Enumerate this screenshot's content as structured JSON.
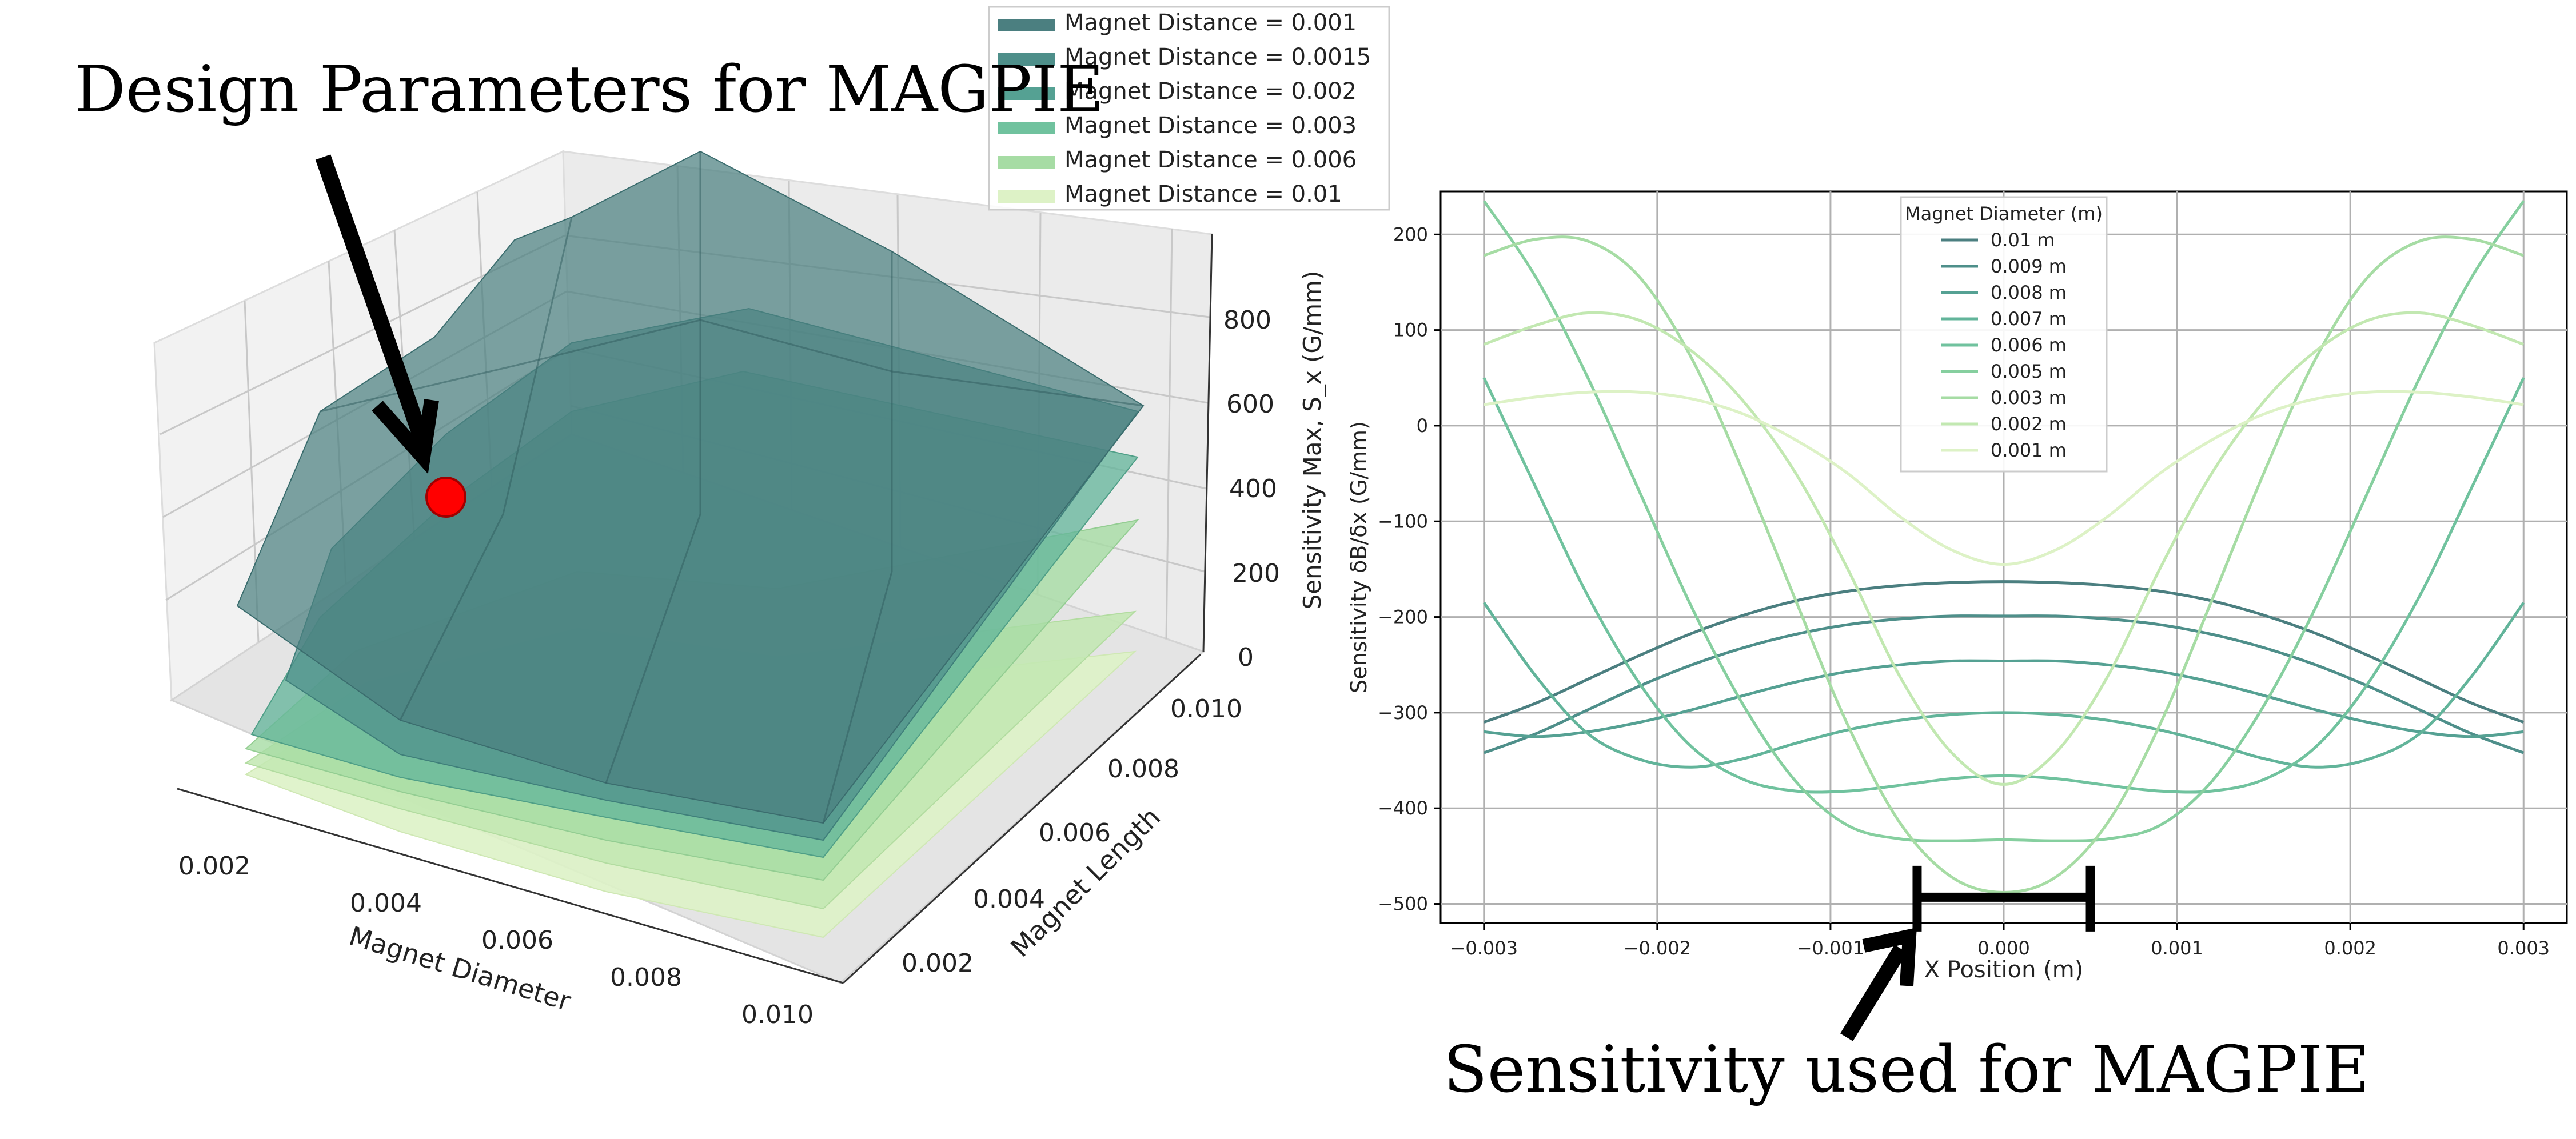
{
  "annotations": {
    "left_title": "Design Parameters for MAGPIE",
    "right_title": "Sensitivity used for MAGPIE"
  },
  "colors": {
    "d0010": "#4b7f80",
    "d0009": "#4e8f8a",
    "d0008": "#55a193",
    "d0007": "#62b49a",
    "d0006": "#70c29e",
    "d0005": "#86cf9f",
    "d0003": "#a6dca4",
    "d0002": "#c2e8b1",
    "d0001": "#ddf2c6",
    "marker": "#ff0000"
  },
  "chart_data": [
    {
      "type": "surface",
      "xlabel": "Magnet Diameter",
      "ylabel": "Magnet Length",
      "zlabel": "Sensitivity Max, S_x (G/mm)",
      "x_ticks": [
        "0.002",
        "0.004",
        "0.006",
        "0.008",
        "0.010"
      ],
      "y_ticks": [
        "0.002",
        "0.004",
        "0.006",
        "0.008",
        "0.010"
      ],
      "z_ticks": [
        "0",
        "200",
        "400",
        "600",
        "800"
      ],
      "xlim": [
        0.001,
        0.01
      ],
      "ylim": [
        0.001,
        0.01
      ],
      "zlim": [
        0,
        900
      ],
      "legend_position": "top-right",
      "series": [
        {
          "name": "Magnet Distance = 0.001",
          "approx_peak": 900,
          "color_key": "d0010"
        },
        {
          "name": "Magnet Distance = 0.0015",
          "approx_peak": 560,
          "color_key": "d0009"
        },
        {
          "name": "Magnet Distance = 0.002",
          "approx_peak": 380,
          "color_key": "d0008"
        },
        {
          "name": "Magnet Distance = 0.003",
          "approx_peak": 180,
          "color_key": "d0006"
        },
        {
          "name": "Magnet Distance = 0.006",
          "approx_peak": 60,
          "color_key": "d0003"
        },
        {
          "name": "Magnet Distance = 0.01",
          "approx_peak": 20,
          "color_key": "d0001"
        }
      ],
      "marker": {
        "diameter": 0.002,
        "length": 0.008,
        "value": 460
      }
    },
    {
      "type": "line",
      "xlabel": "X Position (m)",
      "ylabel": "Sensitivity δB/δx (G/mm)",
      "xlim": [
        -0.00325,
        0.00325
      ],
      "ylim": [
        -520,
        245
      ],
      "x_ticks": [
        -0.003,
        -0.002,
        -0.001,
        0.0,
        0.001,
        0.002,
        0.003
      ],
      "x_tick_labels": [
        "−0.003",
        "−0.002",
        "−0.001",
        "0.000",
        "0.001",
        "0.002",
        "0.003"
      ],
      "y_ticks": [
        -500,
        -400,
        -300,
        -200,
        -100,
        0,
        100,
        200
      ],
      "y_tick_labels": [
        "−500",
        "−400",
        "−300",
        "−200",
        "−100",
        "0",
        "100",
        "200"
      ],
      "grid": true,
      "legend_title": "Magnet Diameter (m)",
      "legend_position": "upper-center",
      "x": [
        -0.003,
        -0.0027,
        -0.0024,
        -0.0021,
        -0.0018,
        -0.0015,
        -0.0012,
        -0.0009,
        -0.0006,
        -0.0003,
        0.0,
        0.0003,
        0.0006,
        0.0009,
        0.0012,
        0.0015,
        0.0018,
        0.0021,
        0.0024,
        0.0027,
        0.003
      ],
      "series": [
        {
          "name": "0.01 m",
          "color_key": "d0010",
          "values": [
            -310,
            -290,
            -265,
            -240,
            -217,
            -198,
            -183,
            -173,
            -167,
            -164,
            -163,
            -164,
            -167,
            -173,
            -183,
            -198,
            -217,
            -240,
            -265,
            -290,
            -310
          ]
        },
        {
          "name": "0.009 m",
          "color_key": "d0009",
          "values": [
            -342,
            -322,
            -297,
            -272,
            -250,
            -232,
            -218,
            -208,
            -202,
            -199,
            -199,
            -199,
            -202,
            -208,
            -218,
            -232,
            -250,
            -272,
            -297,
            -322,
            -342
          ]
        },
        {
          "name": "0.008 m",
          "color_key": "d0008",
          "values": [
            -320,
            -325,
            -320,
            -310,
            -297,
            -282,
            -268,
            -257,
            -250,
            -246,
            -246,
            -246,
            -250,
            -257,
            -268,
            -282,
            -297,
            -310,
            -320,
            -325,
            -320
          ]
        },
        {
          "name": "0.007 m",
          "color_key": "d0007",
          "values": [
            -185,
            -262,
            -322,
            -349,
            -357,
            -348,
            -332,
            -318,
            -308,
            -302,
            -300,
            -302,
            -308,
            -318,
            -332,
            -348,
            -357,
            -349,
            -322,
            -262,
            -185
          ]
        },
        {
          "name": "0.006 m",
          "color_key": "d0006",
          "values": [
            50,
            -65,
            -178,
            -270,
            -336,
            -370,
            -382,
            -382,
            -376,
            -369,
            -366,
            -369,
            -376,
            -382,
            -382,
            -370,
            -336,
            -270,
            -178,
            -65,
            50
          ]
        },
        {
          "name": "0.005 m",
          "color_key": "d0005",
          "values": [
            235,
            155,
            50,
            -70,
            -190,
            -293,
            -372,
            -418,
            -432,
            -434,
            -433,
            -434,
            -432,
            -418,
            -372,
            -293,
            -190,
            -70,
            50,
            155,
            235
          ]
        },
        {
          "name": "0.003 m",
          "color_key": "d0003",
          "values": [
            178,
            195,
            193,
            155,
            70,
            -50,
            -183,
            -313,
            -415,
            -472,
            -488,
            -472,
            -415,
            -313,
            -183,
            -50,
            70,
            155,
            193,
            195,
            178
          ]
        },
        {
          "name": "0.002 m",
          "color_key": "d0002",
          "values": [
            85,
            105,
            118,
            110,
            78,
            25,
            -50,
            -150,
            -262,
            -342,
            -375,
            -342,
            -262,
            -150,
            -50,
            25,
            78,
            110,
            118,
            105,
            85
          ]
        },
        {
          "name": "0.001 m",
          "color_key": "d0001",
          "values": [
            22,
            30,
            35,
            35,
            28,
            12,
            -15,
            -50,
            -95,
            -130,
            -145,
            -130,
            -95,
            -50,
            -15,
            12,
            28,
            35,
            35,
            30,
            22
          ]
        }
      ],
      "highlight_range": [
        -0.0005,
        0.0005
      ]
    }
  ]
}
